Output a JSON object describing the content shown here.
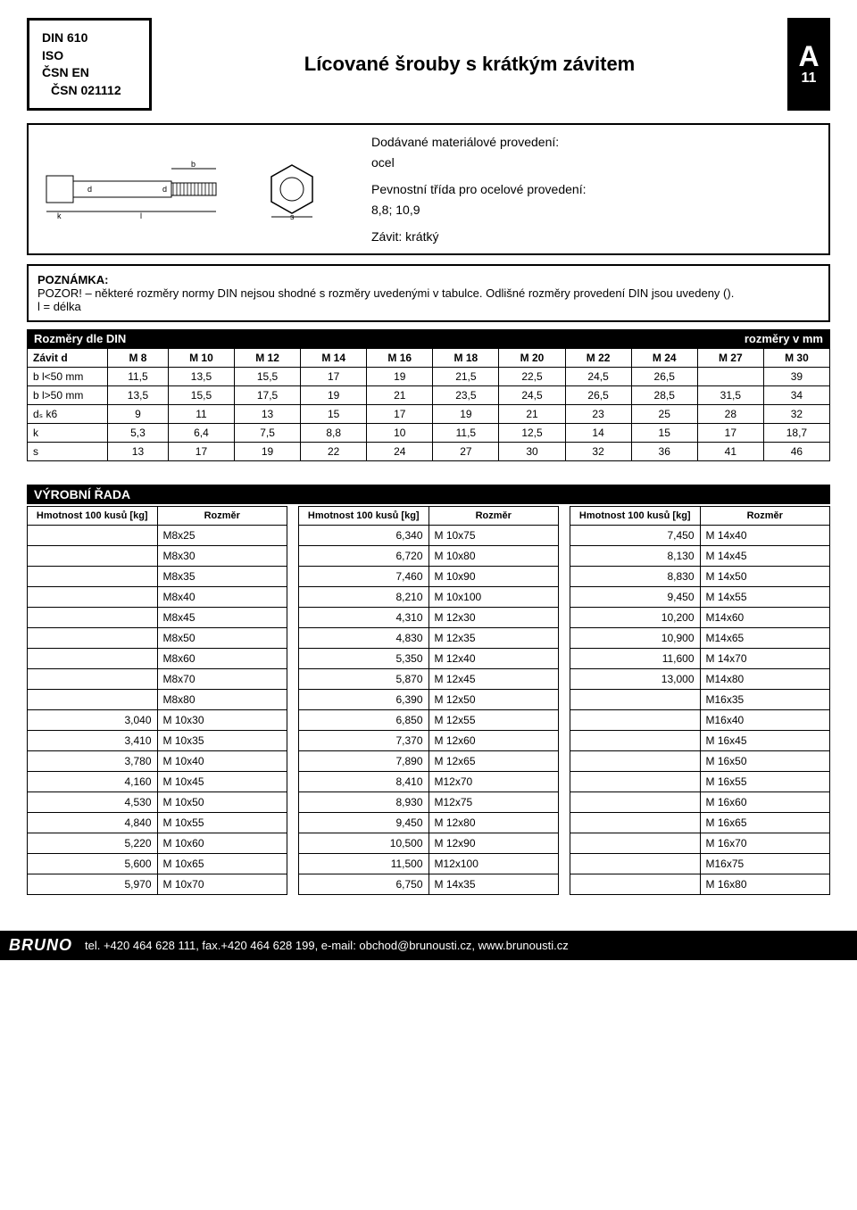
{
  "standards": {
    "din": "DIN 610",
    "iso": "ISO",
    "csnen": "ČSN EN",
    "csn": "ČSN 021112"
  },
  "title": "Lícované šrouby s krátkým závitem",
  "tab": {
    "letter": "A",
    "number": "11"
  },
  "spec": {
    "mat_label": "Dodávané materiálové provedení:",
    "mat_value": "ocel",
    "strength_label": "Pevnostní třída pro ocelové provedení:",
    "strength_value": "8,8; 10,9",
    "thread_label": "Závit: krátký"
  },
  "note": {
    "hdr": "POZNÁMKA:",
    "body": "POZOR! – některé rozměry normy DIN nejsou shodné s rozměry uvedenými v tabulce. Odlišné rozměry provedení DIN jsou uvedeny ().",
    "len": "l = délka"
  },
  "dims_bar": {
    "left": "Rozměry dle DIN",
    "right": "rozměry v mm"
  },
  "dims": {
    "header": [
      "Závit d",
      "M 8",
      "M 10",
      "M 12",
      "M 14",
      "M 16",
      "M 18",
      "M 20",
      "M 22",
      "M 24",
      "M 27",
      "M 30"
    ],
    "rows": [
      [
        "b l<50 mm",
        "11,5",
        "13,5",
        "15,5",
        "17",
        "19",
        "21,5",
        "22,5",
        "24,5",
        "26,5",
        "",
        "39"
      ],
      [
        "b l>50 mm",
        "13,5",
        "15,5",
        "17,5",
        "19",
        "21",
        "23,5",
        "24,5",
        "26,5",
        "28,5",
        "31,5",
        "34"
      ],
      [
        "dₛ k6",
        "9",
        "11",
        "13",
        "15",
        "17",
        "19",
        "21",
        "23",
        "25",
        "28",
        "32"
      ],
      [
        "k",
        "5,3",
        "6,4",
        "7,5",
        "8,8",
        "10",
        "11,5",
        "12,5",
        "14",
        "15",
        "17",
        "18,7"
      ],
      [
        "s",
        "13",
        "17",
        "19",
        "22",
        "24",
        "27",
        "30",
        "32",
        "36",
        "41",
        "46"
      ]
    ]
  },
  "product_bar": "VÝROBNÍ ŘADA",
  "product_headers": {
    "weight": "Hmotnost 100 kusů\n[kg]",
    "size": "Rozměr"
  },
  "products": {
    "col1": [
      [
        "",
        "M8x25"
      ],
      [
        "",
        "M8x30"
      ],
      [
        "",
        "M8x35"
      ],
      [
        "",
        "M8x40"
      ],
      [
        "",
        "M8x45"
      ],
      [
        "",
        "M8x50"
      ],
      [
        "",
        "M8x60"
      ],
      [
        "",
        "M8x70"
      ],
      [
        "",
        "M8x80"
      ],
      [
        "3,040",
        "M 10x30"
      ],
      [
        "3,410",
        "M 10x35"
      ],
      [
        "3,780",
        "M 10x40"
      ],
      [
        "4,160",
        "M 10x45"
      ],
      [
        "4,530",
        "M 10x50"
      ],
      [
        "4,840",
        "M 10x55"
      ],
      [
        "5,220",
        "M 10x60"
      ],
      [
        "5,600",
        "M 10x65"
      ],
      [
        "5,970",
        "M 10x70"
      ]
    ],
    "col2": [
      [
        "6,340",
        "M 10x75"
      ],
      [
        "6,720",
        "M 10x80"
      ],
      [
        "7,460",
        "M 10x90"
      ],
      [
        "8,210",
        "M 10x100"
      ],
      [
        "4,310",
        "M 12x30"
      ],
      [
        "4,830",
        "M 12x35"
      ],
      [
        "5,350",
        "M 12x40"
      ],
      [
        "5,870",
        "M 12x45"
      ],
      [
        "6,390",
        "M 12x50"
      ],
      [
        "6,850",
        "M 12x55"
      ],
      [
        "7,370",
        "M 12x60"
      ],
      [
        "7,890",
        "M 12x65"
      ],
      [
        "8,410",
        "M12x70"
      ],
      [
        "8,930",
        "M12x75"
      ],
      [
        "9,450",
        "M 12x80"
      ],
      [
        "10,500",
        "M 12x90"
      ],
      [
        "11,500",
        "M12x100"
      ],
      [
        "6,750",
        "M 14x35"
      ]
    ],
    "col3": [
      [
        "7,450",
        "M 14x40"
      ],
      [
        "8,130",
        "M 14x45"
      ],
      [
        "8,830",
        "M 14x50"
      ],
      [
        "9,450",
        "M 14x55"
      ],
      [
        "10,200",
        "M14x60"
      ],
      [
        "10,900",
        "M14x65"
      ],
      [
        "11,600",
        "M 14x70"
      ],
      [
        "13,000",
        "M14x80"
      ],
      [
        "",
        "M16x35"
      ],
      [
        "",
        "M16x40"
      ],
      [
        "",
        "M 16x45"
      ],
      [
        "",
        "M 16x50"
      ],
      [
        "",
        "M 16x55"
      ],
      [
        "",
        "M 16x60"
      ],
      [
        "",
        "M 16x65"
      ],
      [
        "",
        "M 16x70"
      ],
      [
        "",
        "M16x75"
      ],
      [
        "",
        "M 16x80"
      ]
    ]
  },
  "footer": {
    "logo": "BRUNO",
    "contact": "tel. +420 464 628 111, fax.+420 464 628 199, e-mail: obchod@brunousti.cz, www.brunousti.cz"
  },
  "diagram_labels": {
    "b": "b",
    "d": "d",
    "ds": "d",
    "k": "k",
    "l": "l",
    "s": "s"
  }
}
